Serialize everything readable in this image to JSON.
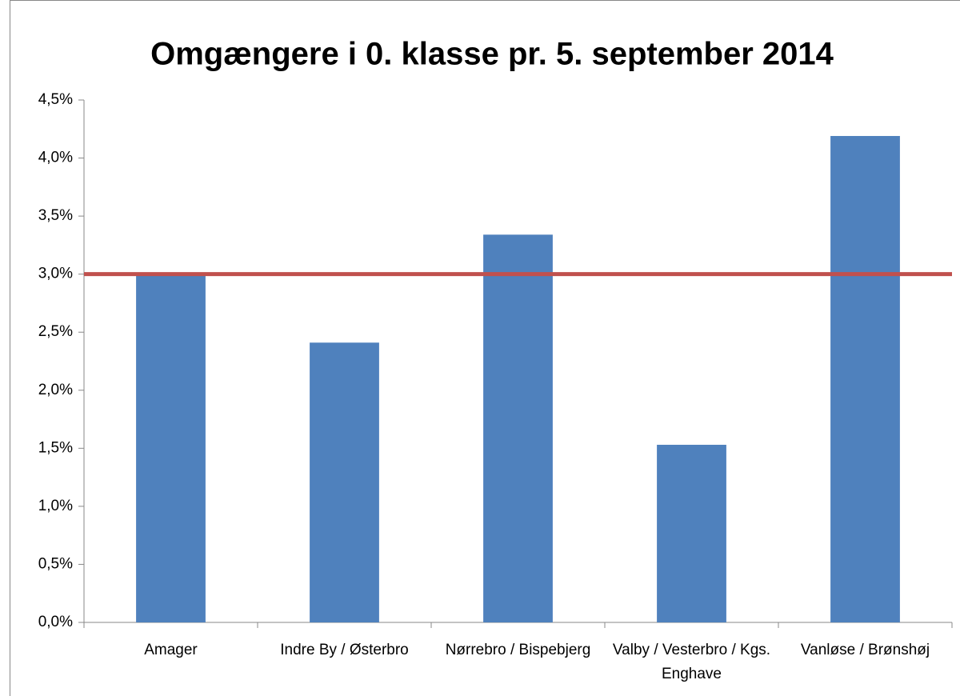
{
  "chart_data": {
    "type": "bar",
    "title": "Omgængere i 0. klasse pr. 5. september 2014",
    "categories": [
      "Amager",
      "Indre By / Østerbro",
      "Nørrebro / Bispebjerg",
      "Valby / Vesterbro / Kgs. Enghave",
      "Vanløse / Brønshøj"
    ],
    "values": [
      2.99,
      2.41,
      3.34,
      1.53,
      4.19
    ],
    "color": "#4f81bd",
    "reference_line": {
      "value": 3,
      "color": "#c0504d"
    },
    "ylim": [
      0,
      4.5
    ],
    "yticks": [
      {
        "value": 0,
        "label": "0,0%"
      },
      {
        "value": 0.5,
        "label": "0,5%"
      },
      {
        "value": 1,
        "label": "1,0%"
      },
      {
        "value": 1.5,
        "label": "1,5%"
      },
      {
        "value": 2,
        "label": "2,0%"
      },
      {
        "value": 2.5,
        "label": "2,5%"
      },
      {
        "value": 3,
        "label": "3,0%"
      },
      {
        "value": 3.5,
        "label": "3,5%"
      },
      {
        "value": 4,
        "label": "4,0%"
      },
      {
        "value": 4.5,
        "label": "4,5%"
      }
    ],
    "grid": false
  }
}
